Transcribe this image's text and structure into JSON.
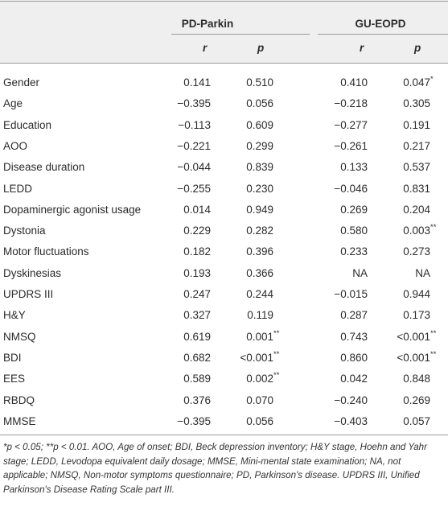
{
  "table": {
    "groups": [
      "PD-Parkin",
      "GU-EOPD"
    ],
    "subheaders": [
      "r",
      "p",
      "r",
      "p"
    ],
    "rows": [
      [
        "Gender",
        "0.141",
        "0.510",
        "0.410",
        "0.047*"
      ],
      [
        "Age",
        "−0.395",
        "0.056",
        "−0.218",
        "0.305"
      ],
      [
        "Education",
        "−0.113",
        "0.609",
        "−0.277",
        "0.191"
      ],
      [
        "AOO",
        "−0.221",
        "0.299",
        "−0.261",
        "0.217"
      ],
      [
        "Disease duration",
        "−0.044",
        "0.839",
        "0.133",
        "0.537"
      ],
      [
        "LEDD",
        "−0.255",
        "0.230",
        "−0.046",
        "0.831"
      ],
      [
        "Dopaminergic agonist usage",
        "0.014",
        "0.949",
        "0.269",
        "0.204"
      ],
      [
        "Dystonia",
        "0.229",
        "0.282",
        "0.580",
        "0.003**"
      ],
      [
        "Motor fluctuations",
        "0.182",
        "0.396",
        "0.233",
        "0.273"
      ],
      [
        "Dyskinesias",
        "0.193",
        "0.366",
        "NA",
        "NA"
      ],
      [
        "UPDRS III",
        "0.247",
        "0.244",
        "−0.015",
        "0.944"
      ],
      [
        "H&Y",
        "0.327",
        "0.119",
        "0.287",
        "0.173"
      ],
      [
        "NMSQ",
        "0.619",
        "0.001**",
        "0.743",
        "<0.001**"
      ],
      [
        "BDI",
        "0.682",
        "<0.001**",
        "0.860",
        "<0.001**"
      ],
      [
        "EES",
        "0.589",
        "0.002**",
        "0.042",
        "0.848"
      ],
      [
        "RBDQ",
        "0.376",
        "0.070",
        "−0.240",
        "0.269"
      ],
      [
        "MMSE",
        "−0.395",
        "0.056",
        "−0.403",
        "0.057"
      ]
    ]
  },
  "footnote": "*p < 0.05; **p < 0.01. AOO, Age of onset; BDI, Beck depression inventory; H&Y stage, Hoehn and Yahr stage; LEDD, Levodopa equivalent daily dosage; MMSE, Mini-mental state examination; NA, not applicable; NMSQ, Non-motor symptoms questionnaire; PD, Parkinson's disease. UPDRS III, Unified Parkinson's Disease Rating Scale part III."
}
